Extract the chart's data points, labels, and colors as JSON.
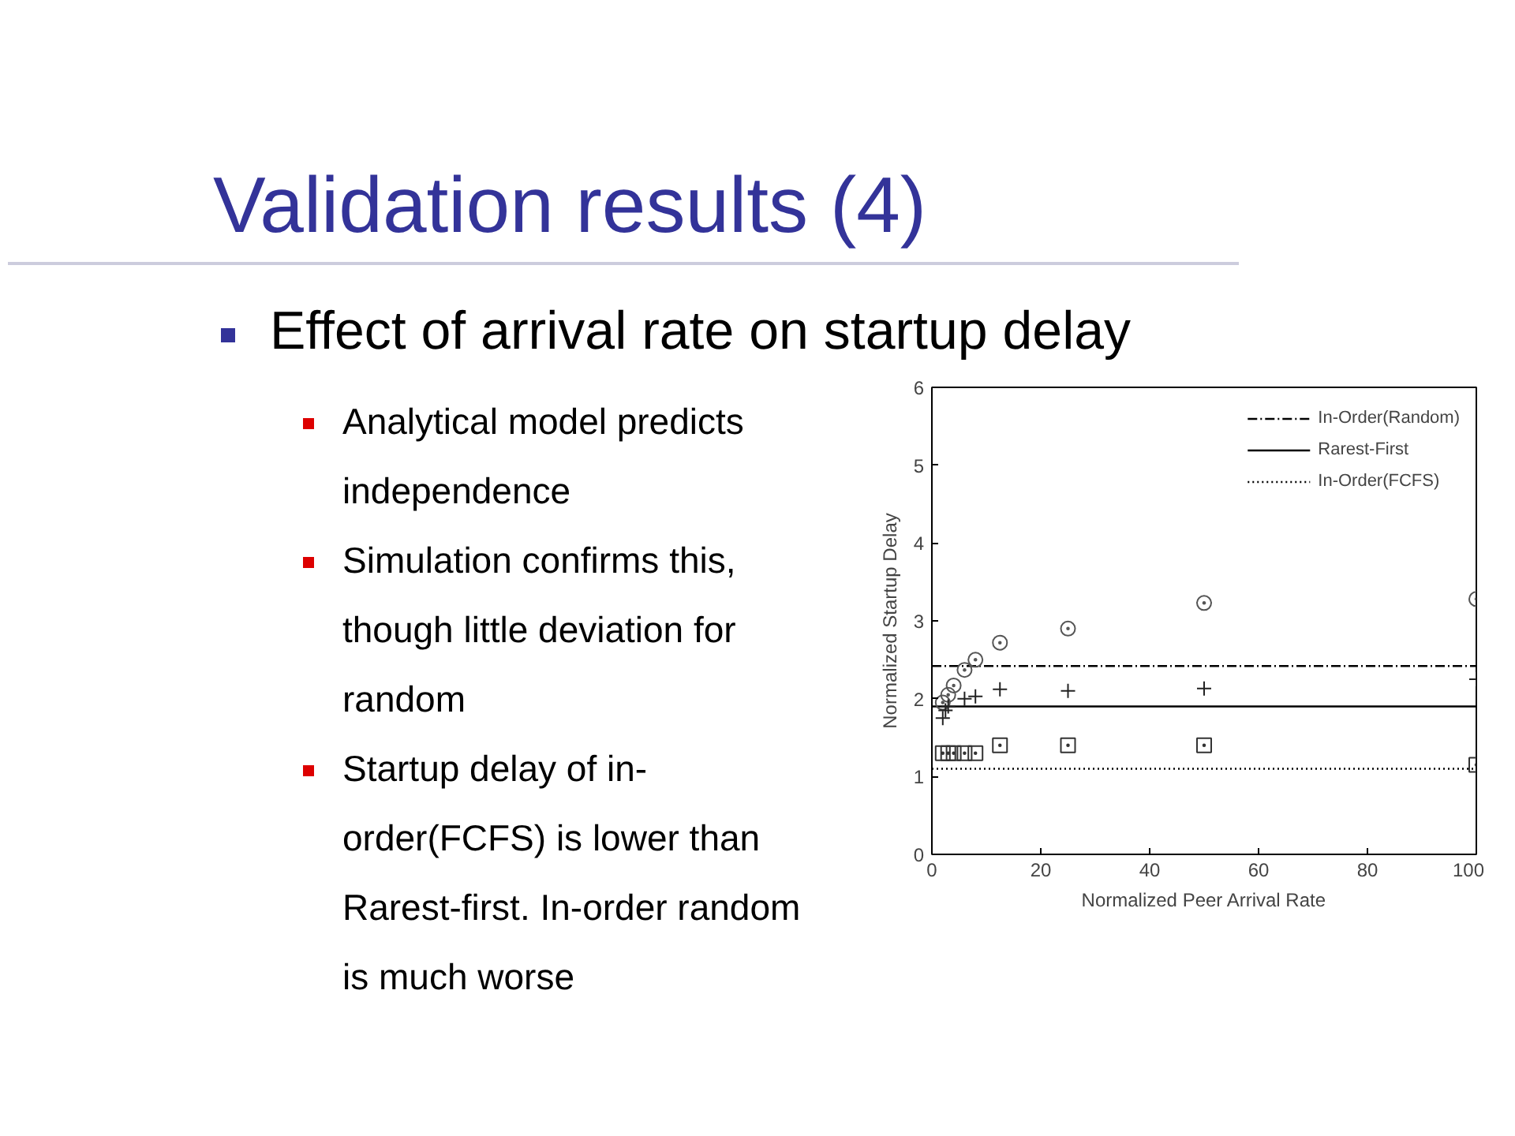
{
  "chart_data": {
    "type": "scatter",
    "title": "Validation results (4)",
    "subtitle": "Effect of arrival rate on startup delay",
    "annotations": [
      "Analytical model predicts independence",
      "Simulation confirms this, though little deviation for random",
      "Startup delay of in-order(FCFS) is lower than Rarest-first. In-order random is much worse"
    ],
    "xlabel": "Normalized Peer Arrival Rate",
    "ylabel": "Normalized Startup Delay",
    "xlim": [
      0,
      100
    ],
    "ylim": [
      0,
      6
    ],
    "xticks": [
      0,
      20,
      40,
      60,
      80,
      100
    ],
    "yticks": [
      0,
      1,
      2,
      3,
      4,
      5,
      6
    ],
    "grid": false,
    "legend": "top right",
    "series": [
      {
        "name": "In-Order(Random)",
        "type": "line",
        "line_style": "dashed",
        "marker": "none",
        "color": "#000000",
        "x": [
          0,
          100
        ],
        "values": [
          2.42,
          2.42
        ]
      },
      {
        "name": "Rarest-First",
        "type": "line",
        "line_style": "solid",
        "marker": "none",
        "color": "#000000",
        "x": [
          0,
          100
        ],
        "values": [
          1.9,
          1.9
        ]
      },
      {
        "name": "In-Order(FCFS)",
        "type": "line",
        "line_style": "dotted",
        "marker": "none",
        "color": "#000000",
        "x": [
          0,
          100
        ],
        "values": [
          1.1,
          1.1
        ]
      },
      {
        "marker": "circle",
        "color": "#555555",
        "x": [
          2,
          3,
          4,
          6,
          8,
          12.5,
          25,
          50,
          100
        ],
        "values": [
          1.95,
          2.05,
          2.17,
          2.37,
          2.5,
          2.72,
          2.9,
          3.23,
          3.28
        ]
      },
      {
        "marker": "cross",
        "color": "#222222",
        "x": [
          2,
          2.5,
          3,
          6,
          8,
          12.5,
          25,
          50,
          100
        ],
        "values": [
          1.75,
          1.85,
          1.9,
          2.0,
          2.03,
          2.12,
          2.1,
          2.13,
          2.25
        ]
      },
      {
        "marker": "square",
        "color": "#333333",
        "x": [
          2,
          3,
          4,
          6,
          8,
          12.5,
          25,
          50,
          100
        ],
        "values": [
          1.3,
          1.3,
          1.3,
          1.3,
          1.3,
          1.4,
          1.4,
          1.4,
          1.15
        ]
      }
    ]
  }
}
